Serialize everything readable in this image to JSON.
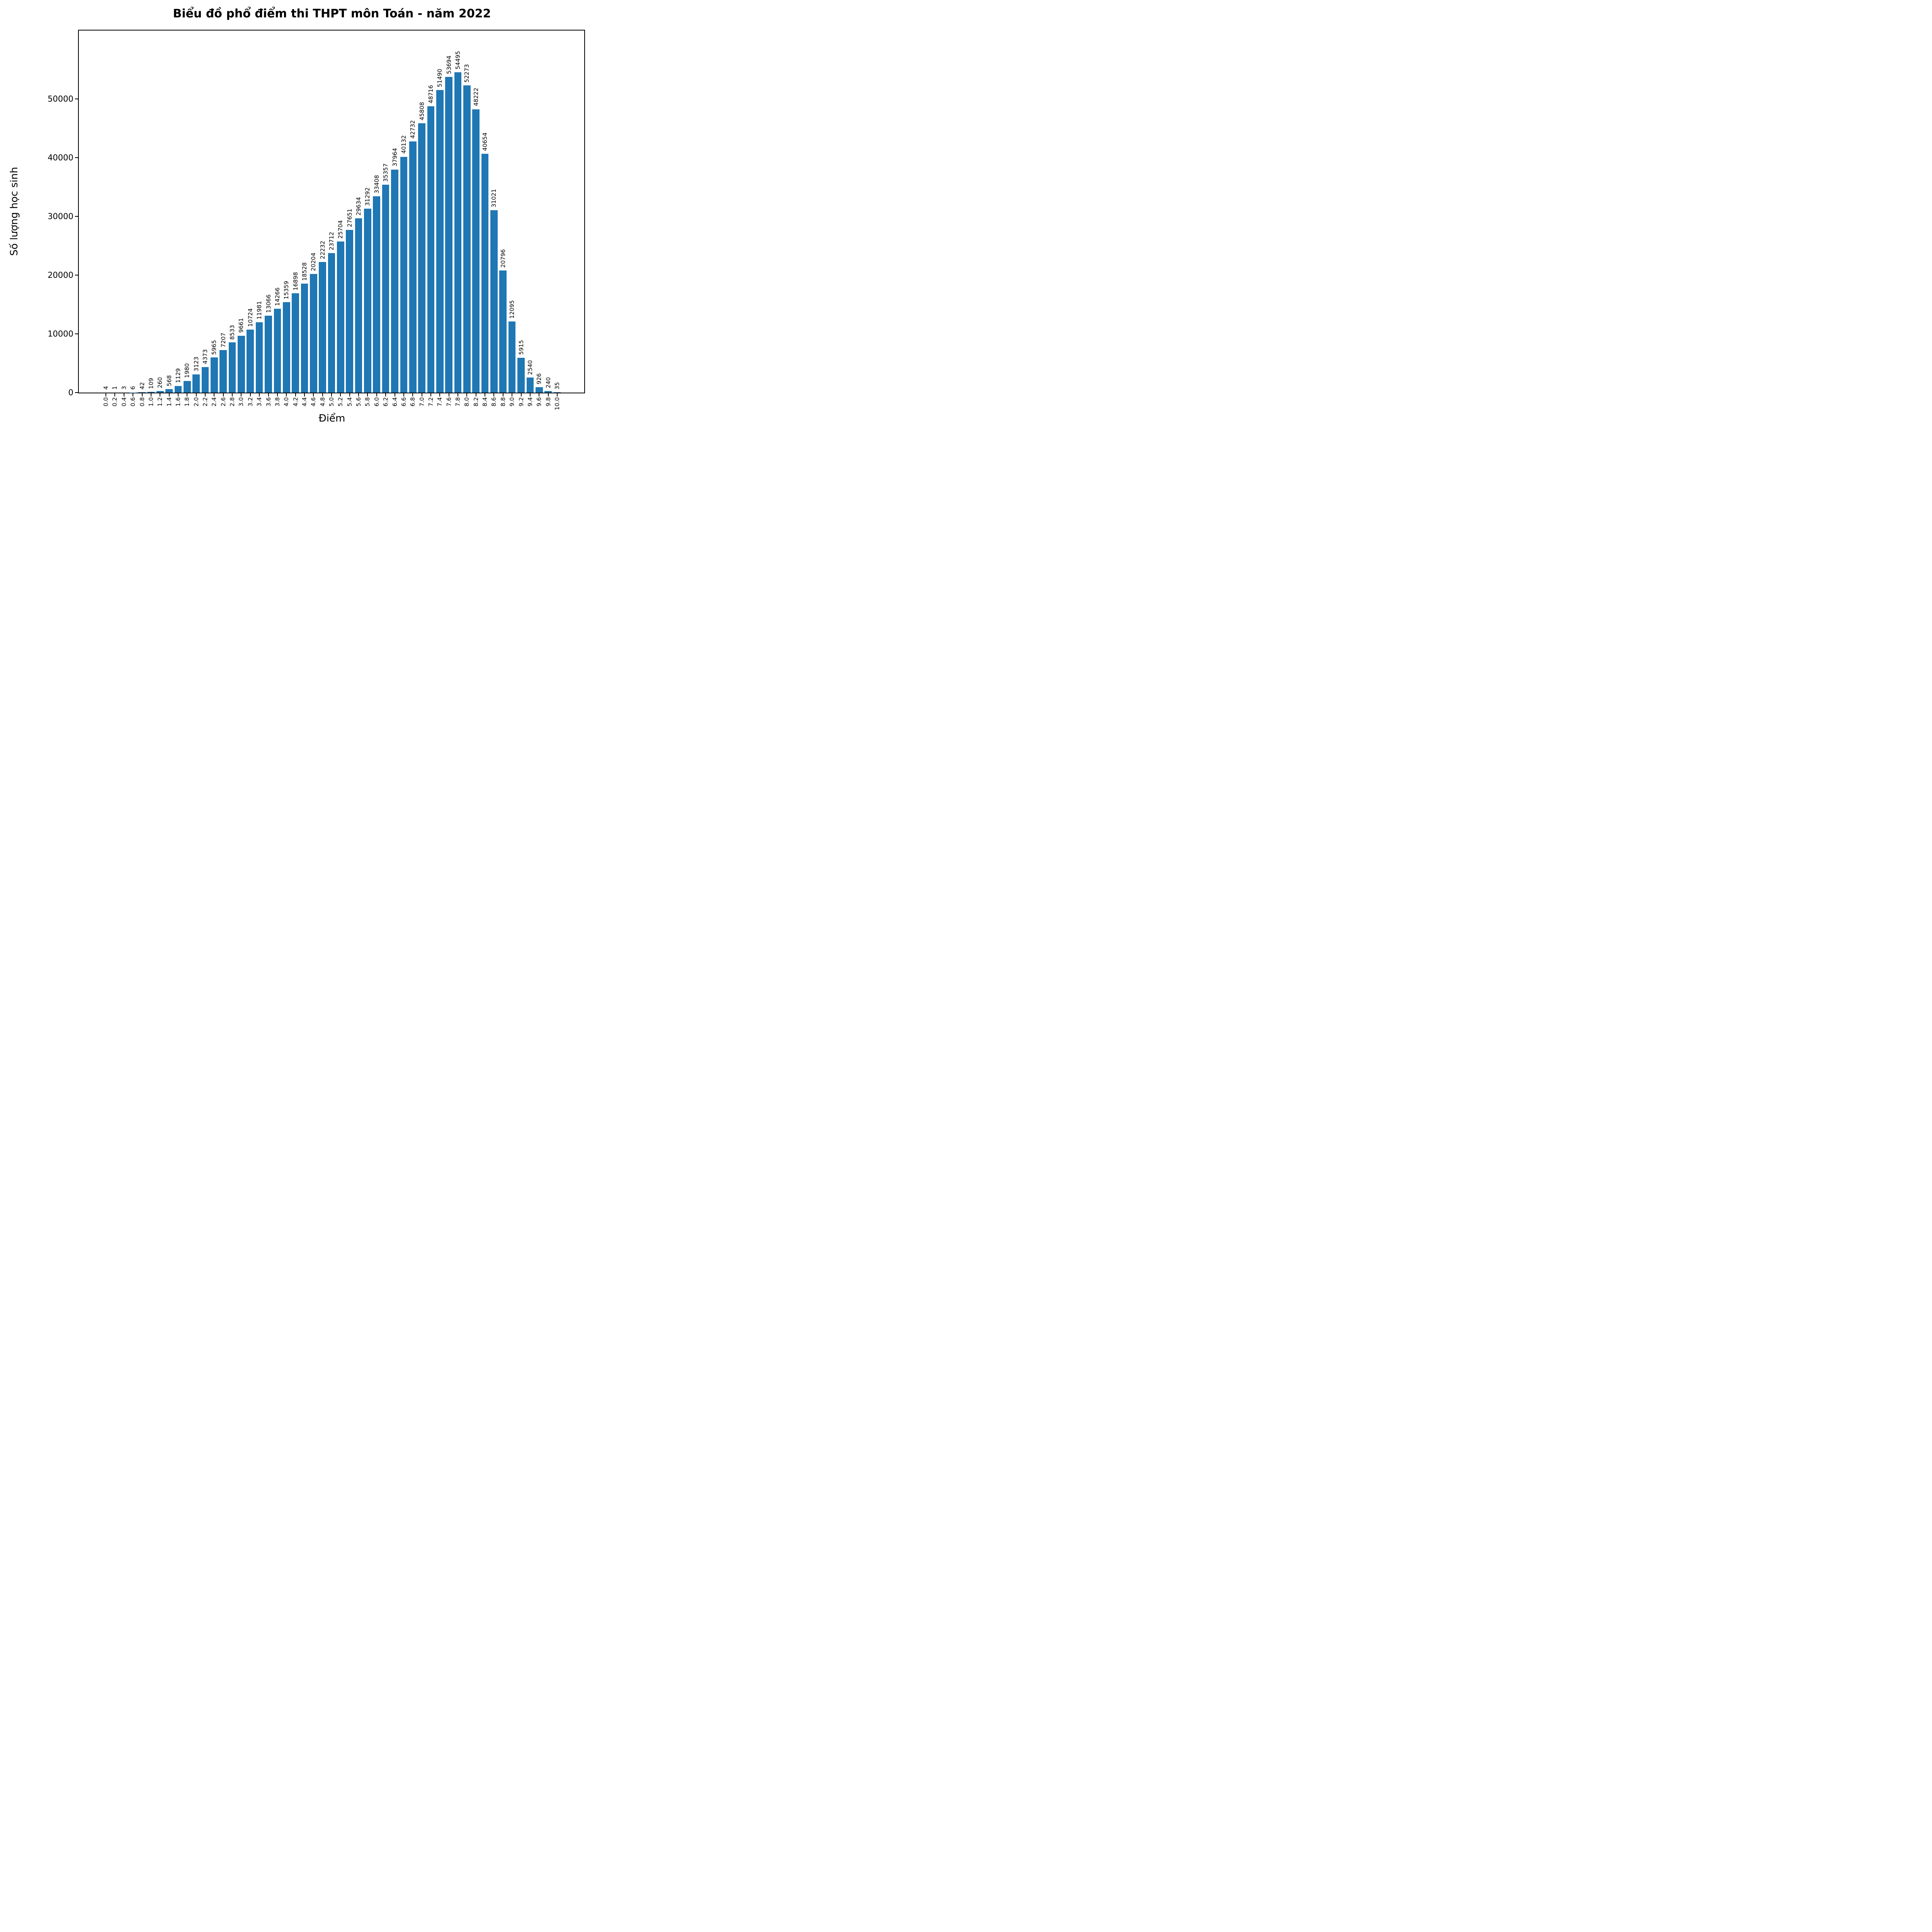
{
  "title": "Biểu đồ phổ điểm thi THPT môn Toán - năm 2022",
  "colors": {
    "bar": "#1f77b4",
    "axis": "#000000",
    "background": "#ffffff",
    "text": "#000000"
  },
  "chart_data": {
    "type": "bar",
    "title": "Biểu đồ phổ điểm thi THPT môn Toán - năm 2022",
    "xlabel": "Điểm",
    "ylabel": "Số lượng học sinh",
    "categories": [
      "0.0",
      "0.2",
      "0.4",
      "0.6",
      "0.8",
      "1.0",
      "1.2",
      "1.4",
      "1.6",
      "1.8",
      "2.0",
      "2.2",
      "2.4",
      "2.6",
      "2.8",
      "3.0",
      "3.2",
      "3.4",
      "3.6",
      "3.8",
      "4.0",
      "4.2",
      "4.4",
      "4.6",
      "4.8",
      "5.0",
      "5.2",
      "5.4",
      "5.6",
      "5.8",
      "6.0",
      "6.2",
      "6.4",
      "6.6",
      "6.8",
      "7.0",
      "7.2",
      "7.4",
      "7.6",
      "7.8",
      "8.0",
      "8.2",
      "8.4",
      "8.6",
      "8.8",
      "9.0",
      "9.2",
      "9.4",
      "9.6",
      "9.8",
      "10.0"
    ],
    "values": [
      4,
      1,
      3,
      6,
      42,
      109,
      260,
      568,
      1129,
      1980,
      3123,
      4373,
      5965,
      7207,
      8533,
      9661,
      10724,
      11981,
      13066,
      14266,
      15359,
      16898,
      18528,
      20204,
      22232,
      23712,
      25704,
      27651,
      29634,
      31292,
      33408,
      35357,
      37964,
      40132,
      42732,
      45808,
      48716,
      51490,
      53694,
      54495,
      52273,
      48222,
      40654,
      31021,
      20796,
      12095,
      5915,
      2540,
      926,
      240,
      35
    ],
    "bar_value_labels_shown": true,
    "bar_label_rotation_deg": 90,
    "xtick_rotation_deg": 90,
    "yticks": [
      0,
      10000,
      20000,
      30000,
      40000,
      50000
    ],
    "ylim": [
      0,
      61610
    ],
    "xlim_data_units": [
      -0.6,
      10.6
    ],
    "bar_width_data_units": 0.16,
    "grid": false,
    "legend_position": "none"
  }
}
